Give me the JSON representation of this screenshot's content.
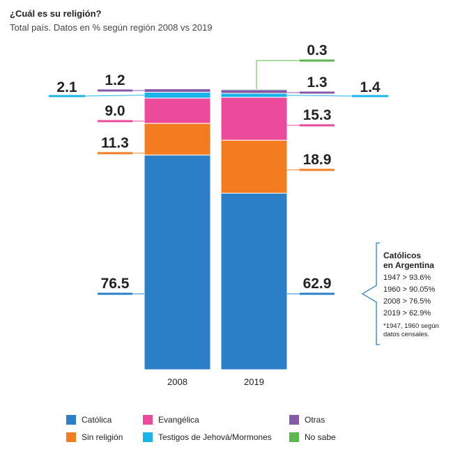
{
  "title": "¿Cuál es su religión?",
  "subtitle": "Total país. Datos en % según región 2008 vs 2019",
  "colors": {
    "catolica": "#2b7fc6",
    "sin_religion": "#f47c20",
    "evangelica": "#ec4a9b",
    "testigos": "#1ab4ea",
    "otras": "#8559a5",
    "no_sabe": "#5cb84c"
  },
  "chart_data": {
    "type": "bar",
    "stacked": true,
    "categories": [
      "2008",
      "2019"
    ],
    "series": [
      {
        "key": "catolica",
        "name": "Católica",
        "values": [
          76.5,
          62.9
        ],
        "labels": [
          "76.5",
          "62.9"
        ]
      },
      {
        "key": "sin_religion",
        "name": "Sin religión",
        "values": [
          11.3,
          18.9
        ],
        "labels": [
          "11.3",
          "18.9"
        ]
      },
      {
        "key": "evangelica",
        "name": "Evangélica",
        "values": [
          9.0,
          15.3
        ],
        "labels": [
          "9.0",
          "15.3"
        ]
      },
      {
        "key": "testigos",
        "name": "Testigos de Jehová/Mormones",
        "values": [
          2.1,
          1.4
        ],
        "labels": [
          "2.1",
          "1.4"
        ]
      },
      {
        "key": "otras",
        "name": "Otras",
        "values": [
          1.2,
          1.3
        ],
        "labels": [
          "1.2",
          "1.3"
        ]
      },
      {
        "key": "no_sabe",
        "name": "No sabe",
        "values": [
          0,
          0.3
        ],
        "labels": [
          "",
          "0.3"
        ]
      }
    ],
    "ylim": [
      0,
      100
    ],
    "xlabel": "",
    "ylabel": ""
  },
  "note": {
    "title_line1": "Católicos",
    "title_line2": "en Argentina",
    "lines": [
      "1947 > 93.6%",
      "1960 > 90.05%",
      "2008 > 76.5%",
      "2019 > 62.9%"
    ],
    "foot_line1": "*1947, 1960 según",
    "foot_line2": "datos censales."
  },
  "legend": [
    {
      "key": "catolica",
      "label": "Católica"
    },
    {
      "key": "evangelica",
      "label": "Evangélica"
    },
    {
      "key": "otras",
      "label": "Otras"
    },
    {
      "key": "sin_religion",
      "label": "Sin religión"
    },
    {
      "key": "testigos",
      "label": "Testigos de Jehová/Mormones"
    },
    {
      "key": "no_sabe",
      "label": "No sabe"
    }
  ]
}
